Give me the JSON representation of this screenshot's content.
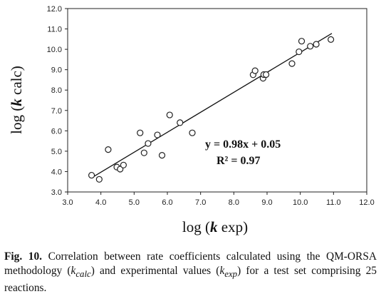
{
  "chart_data": {
    "type": "scatter",
    "x_ticks": [
      "3.0",
      "4.0",
      "5.0",
      "6.0",
      "7.0",
      "8.0",
      "9.0",
      "10.0",
      "11.0",
      "12.0"
    ],
    "y_ticks": [
      "3.0",
      "4.0",
      "5.0",
      "6.0",
      "7.0",
      "8.0",
      "9.0",
      "10.0",
      "11.0",
      "12.0"
    ],
    "xlim": [
      3.0,
      12.0
    ],
    "ylim": [
      3.0,
      12.0
    ],
    "xlabel_prefix": "log (",
    "xlabel_symbol": "k",
    "xlabel_suffix": " exp)",
    "ylabel_prefix": "log (",
    "ylabel_symbol": "k",
    "ylabel_suffix": " calc)",
    "grid": false,
    "points": [
      {
        "x": 3.72,
        "y": 3.82
      },
      {
        "x": 3.95,
        "y": 3.62
      },
      {
        "x": 4.22,
        "y": 5.08
      },
      {
        "x": 4.48,
        "y": 4.22
      },
      {
        "x": 4.58,
        "y": 4.12
      },
      {
        "x": 4.68,
        "y": 4.32
      },
      {
        "x": 5.18,
        "y": 5.9
      },
      {
        "x": 5.3,
        "y": 4.92
      },
      {
        "x": 5.42,
        "y": 5.38
      },
      {
        "x": 5.7,
        "y": 5.8
      },
      {
        "x": 5.84,
        "y": 4.8
      },
      {
        "x": 6.07,
        "y": 6.78
      },
      {
        "x": 6.38,
        "y": 6.4
      },
      {
        "x": 6.75,
        "y": 5.9
      },
      {
        "x": 8.58,
        "y": 8.75
      },
      {
        "x": 8.64,
        "y": 8.95
      },
      {
        "x": 8.88,
        "y": 8.58
      },
      {
        "x": 8.9,
        "y": 8.76
      },
      {
        "x": 8.97,
        "y": 8.76
      },
      {
        "x": 9.75,
        "y": 9.3
      },
      {
        "x": 9.96,
        "y": 9.88
      },
      {
        "x": 10.04,
        "y": 10.4
      },
      {
        "x": 10.3,
        "y": 10.15
      },
      {
        "x": 10.48,
        "y": 10.25
      },
      {
        "x": 10.92,
        "y": 10.48
      }
    ],
    "trendline": {
      "slope": 0.98,
      "intercept": 0.05,
      "x_range": [
        3.75,
        10.95
      ]
    },
    "equation_text": "y = 0.98x + 0.05",
    "r2_text": "R² = 0.97"
  },
  "caption": {
    "label": "Fig. 10.",
    "text_1": " Correlation between rate coefficients calculated using the QM-ORSA methodology (",
    "kcalc_k": "k",
    "kcalc_sub": "calc",
    "text_2": ") and experimental values (",
    "kexp_k": "k",
    "kexp_sub": "exp",
    "text_3": ") for a test set comprising 25 reactions."
  }
}
